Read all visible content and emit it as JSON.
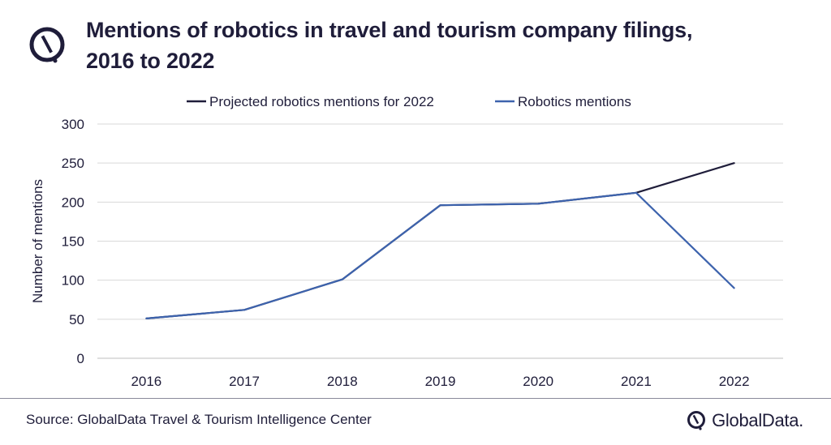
{
  "header": {
    "title_line1": "Mentions of robotics in travel and tourism company filings,",
    "title_line2": "2016 to 2022"
  },
  "footer": {
    "source": "Source: GlobalData Travel & Tourism Intelligence Center",
    "brand": "GlobalData."
  },
  "colors": {
    "text": "#1f1d3a",
    "projected": "#1f1d3a",
    "robotics": "#3d63ad",
    "grid": "#d9d9d9",
    "axis": "#bfbfbf"
  },
  "chart_data": {
    "type": "line",
    "x": [
      "2016",
      "2017",
      "2018",
      "2019",
      "2020",
      "2021",
      "2022"
    ],
    "ylabel": "Number of mentions",
    "ylim": [
      0,
      300
    ],
    "yticks": [
      "0",
      "50",
      "100",
      "150",
      "200",
      "250",
      "300"
    ],
    "grid": true,
    "legend_position": "top",
    "series": [
      {
        "name": "Projected robotics mentions for 2022",
        "color": "#1f1d3a",
        "values": [
          51,
          62,
          101,
          196,
          198,
          212,
          250
        ]
      },
      {
        "name": "Robotics mentions",
        "color": "#3d63ad",
        "values": [
          51,
          62,
          101,
          196,
          198,
          212,
          90
        ]
      }
    ]
  }
}
